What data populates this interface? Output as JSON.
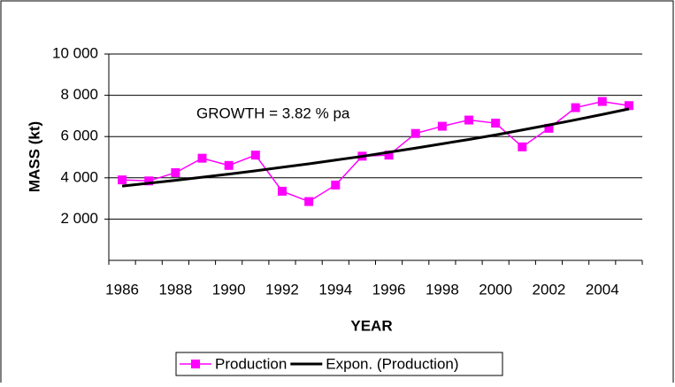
{
  "chart_data": {
    "type": "line",
    "y_label": "MASS (kt)",
    "x_label": "YEAR",
    "annotation": "GROWTH = 3.82 % pa",
    "categories": [
      "1986",
      null,
      "1988",
      null,
      "1990",
      null,
      "1992",
      null,
      "1994",
      null,
      "1996",
      null,
      "1998",
      null,
      "2000",
      null,
      "2002",
      null,
      "2004",
      null
    ],
    "series": [
      {
        "name": "Production",
        "color": "#ff00ff",
        "marker": "square",
        "values": [
          3900,
          3850,
          4250,
          4950,
          4600,
          5100,
          3350,
          2850,
          3650,
          5050,
          5100,
          6150,
          6500,
          6800,
          6650,
          5500,
          6400,
          7400,
          7700,
          7500
        ]
      },
      {
        "name": "Expon. (Production)",
        "color": "#000000",
        "marker": "none",
        "values": [
          3600,
          3740,
          3880,
          4030,
          4180,
          4340,
          4510,
          4680,
          4860,
          5040,
          5240,
          5440,
          5650,
          5860,
          6080,
          6320,
          6560,
          6810,
          7070,
          7340
        ]
      }
    ],
    "ylim": [
      0,
      10000
    ],
    "yticks": [
      {
        "value": 2000,
        "label": "2 000"
      },
      {
        "value": 4000,
        "label": "4 000"
      },
      {
        "value": 6000,
        "label": "6 000"
      },
      {
        "value": 8000,
        "label": "8 000"
      },
      {
        "value": 10000,
        "label": "10 000"
      }
    ],
    "grid": true,
    "legend": "bottom"
  }
}
